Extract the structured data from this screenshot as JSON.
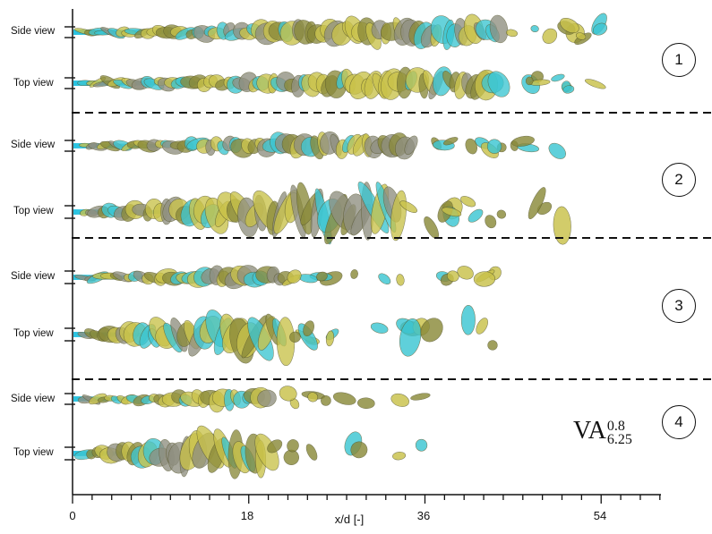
{
  "view_labels": {
    "side": "Side view",
    "top": "Top view"
  },
  "panels": [
    {
      "number": "1"
    },
    {
      "number": "2"
    },
    {
      "number": "3"
    },
    {
      "number": "4"
    }
  ],
  "annotation": {
    "base": "VA",
    "superscript": "0.8",
    "subscript": "6.25"
  },
  "x_axis": {
    "label": "x/d [-]",
    "ticks": [
      "0",
      "18",
      "36",
      "54"
    ]
  },
  "colors": {
    "cyan": "#3cc6d2",
    "yellow": "#c9c24a",
    "olive": "#8a8a3a",
    "gray": "#8f8f80"
  }
}
